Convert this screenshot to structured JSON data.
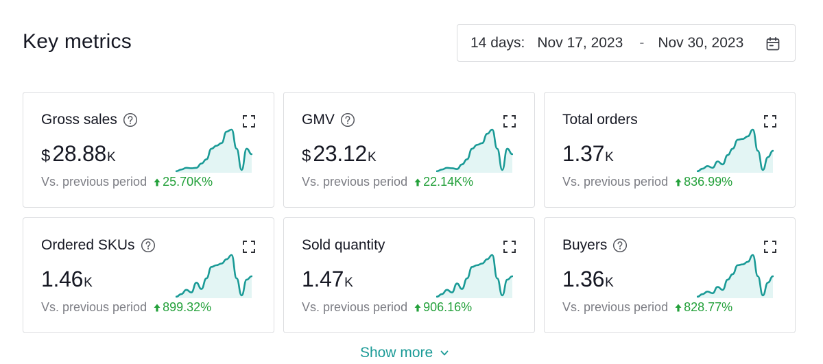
{
  "header": {
    "title": "Key metrics",
    "date_range": {
      "label": "14 days:",
      "start": "Nov 17, 2023",
      "separator": "-",
      "end": "Nov 30, 2023"
    }
  },
  "colors": {
    "accent": "#1a9a96",
    "positive": "#23a03a",
    "spark_fill": "#e3f5f4"
  },
  "icons": {
    "help": "question-circle-icon",
    "expand": "expand-icon",
    "arrow": "arrow-up-icon",
    "calendar": "calendar-icon",
    "chevron": "chevron-down-icon"
  },
  "metrics": [
    {
      "id": "gross-sales",
      "title": "Gross sales",
      "has_help": true,
      "currency": "$",
      "value": "28.88",
      "unit": "K",
      "compare_label": "Vs. previous period",
      "change": "25.70K%",
      "trend": [
        0.02,
        0.06,
        0.1,
        0.09,
        0.1,
        0.2,
        0.3,
        0.55,
        0.62,
        0.68,
        0.95,
        1.0,
        0.55,
        0.05,
        0.55,
        0.42
      ]
    },
    {
      "id": "gmv",
      "title": "GMV",
      "has_help": true,
      "currency": "$",
      "value": "23.12",
      "unit": "K",
      "compare_label": "Vs. previous period",
      "change": "22.14K%",
      "trend": [
        0.02,
        0.06,
        0.1,
        0.09,
        0.07,
        0.18,
        0.3,
        0.55,
        0.64,
        0.68,
        0.9,
        1.0,
        0.55,
        0.05,
        0.55,
        0.42
      ]
    },
    {
      "id": "total-orders",
      "title": "Total orders",
      "has_help": false,
      "currency": "",
      "value": "1.37",
      "unit": "K",
      "compare_label": "Vs. previous period",
      "change": "836.99%",
      "trend": [
        0.02,
        0.08,
        0.14,
        0.1,
        0.25,
        0.18,
        0.4,
        0.55,
        0.76,
        0.78,
        0.84,
        1.0,
        0.5,
        0.05,
        0.35,
        0.5
      ]
    },
    {
      "id": "ordered-skus",
      "title": "Ordered SKUs",
      "has_help": true,
      "currency": "",
      "value": "1.46",
      "unit": "K",
      "compare_label": "Vs. previous period",
      "change": "899.32%",
      "trend": [
        0.02,
        0.08,
        0.18,
        0.12,
        0.35,
        0.2,
        0.45,
        0.72,
        0.76,
        0.8,
        0.9,
        1.0,
        0.45,
        0.05,
        0.42,
        0.5
      ]
    },
    {
      "id": "sold-quantity",
      "title": "Sold quantity",
      "has_help": false,
      "currency": "",
      "value": "1.47",
      "unit": "K",
      "compare_label": "Vs. previous period",
      "change": "906.16%",
      "trend": [
        0.02,
        0.08,
        0.18,
        0.12,
        0.33,
        0.2,
        0.45,
        0.72,
        0.76,
        0.8,
        0.9,
        1.0,
        0.45,
        0.05,
        0.42,
        0.5
      ]
    },
    {
      "id": "buyers",
      "title": "Buyers",
      "has_help": true,
      "currency": "",
      "value": "1.36",
      "unit": "K",
      "compare_label": "Vs. previous period",
      "change": "828.77%",
      "trend": [
        0.02,
        0.08,
        0.14,
        0.1,
        0.25,
        0.18,
        0.42,
        0.55,
        0.76,
        0.78,
        0.84,
        1.0,
        0.5,
        0.05,
        0.35,
        0.5
      ]
    }
  ],
  "footer": {
    "show_more_label": "Show more"
  }
}
